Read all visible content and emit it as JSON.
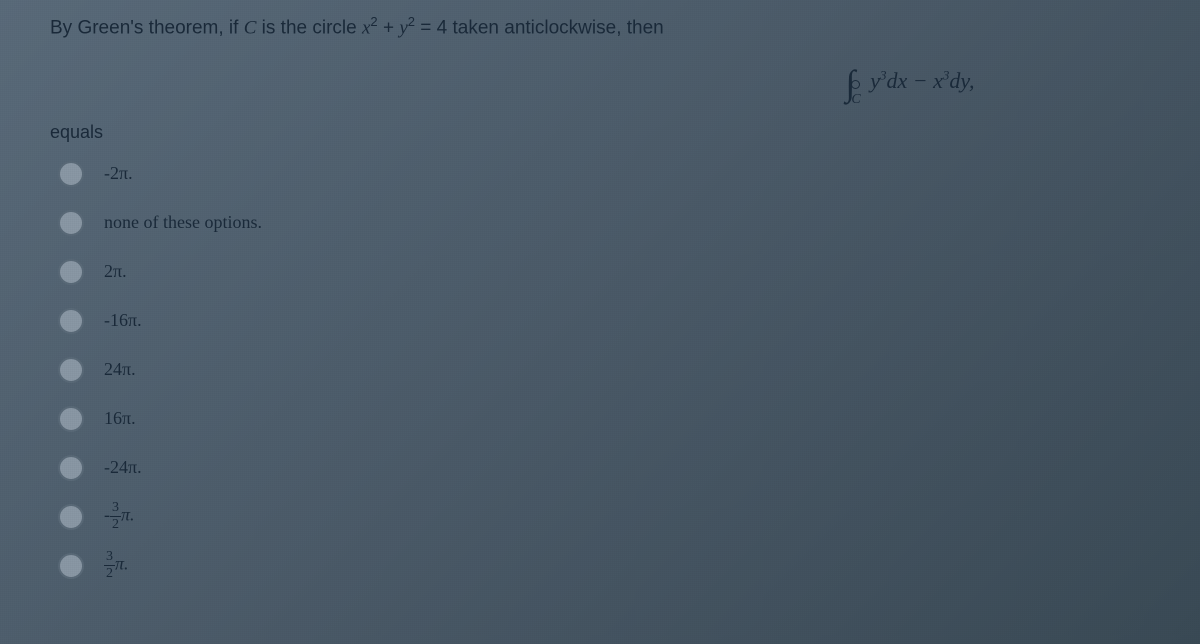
{
  "question": {
    "prefix": "By Green's theorem, if ",
    "var_C": "C",
    "mid1": " is the circle ",
    "equation_lhs_x": "x",
    "equation_lhs_plus": " + ",
    "equation_lhs_y": "y",
    "equation_eq": " = 4",
    "mid2": " taken anticlockwise, then"
  },
  "integral": {
    "symbol": "∮",
    "sub": "C",
    "term1_var": "y",
    "term1_exp": "3",
    "term1_d": "dx",
    "minus": " − ",
    "term2_var": "x",
    "term2_exp": "3",
    "term2_d": "dy",
    "comma": ","
  },
  "equals_label": "equals",
  "options": [
    {
      "text": "-2π.",
      "type": "plain"
    },
    {
      "text": "none of these options.",
      "type": "plain"
    },
    {
      "text": "2π.",
      "type": "plain"
    },
    {
      "text": "-16π.",
      "type": "plain"
    },
    {
      "text": "24π.",
      "type": "plain"
    },
    {
      "text": "16π.",
      "type": "plain"
    },
    {
      "text": "-24π.",
      "type": "plain"
    },
    {
      "num": "3",
      "den": "2",
      "sign": "-",
      "suffix": "π.",
      "type": "fraction"
    },
    {
      "num": "3",
      "den": "2",
      "sign": "",
      "suffix": "π.",
      "type": "fraction"
    }
  ],
  "style": {
    "background_colors": [
      "#5a6b7a",
      "#4a5a68",
      "#3a4a56"
    ],
    "text_color": "#1a2a3a",
    "radio_border": "#5a6a78",
    "radio_fill": "#8a98a5",
    "question_fontsize": 19,
    "option_fontsize": 18,
    "integral_fontsize": 22,
    "radio_size": 26
  }
}
